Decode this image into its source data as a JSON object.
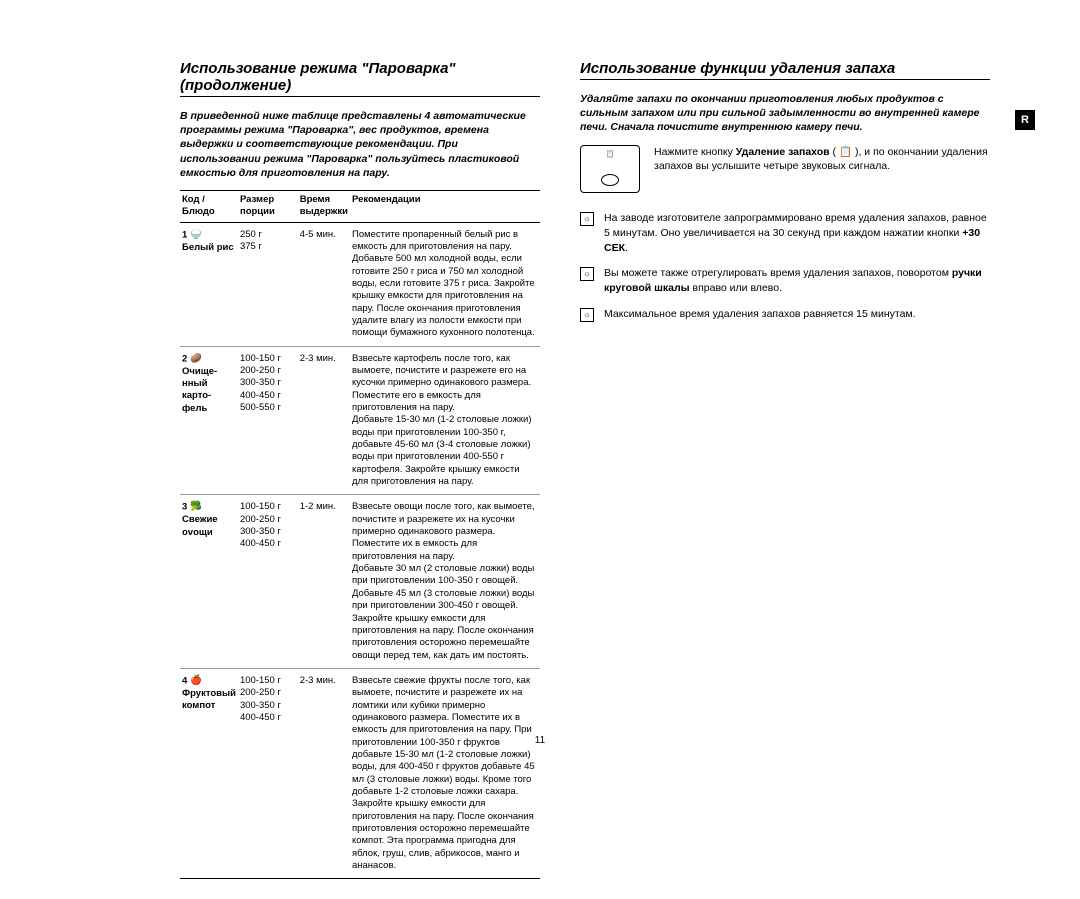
{
  "left": {
    "title": "Использование режима \"Пароварка\" (продолжение)",
    "intro": "В приведенной ниже таблице представлены 4 автоматические программы режима \"Пароварка\", вес продуктов, времена выдержки и соответствующие рекомендации. При использовании режима \"Пароварка\" пользуйтесь пластиковой емкостью для приготовления на пару.",
    "headers": {
      "code": "Код /\nБлюдо",
      "size": "Размер\nпорции",
      "time": "Время\nвыдержки",
      "rec": "Рекомендации"
    },
    "rows": [
      {
        "code": "1",
        "dish": "Белый рис",
        "size": "250 г\n375 г",
        "time": "4-5 мин.",
        "rec": "Поместите пропаренный белый рис в емкость для приготовления на пару.\nДобавьте 500 мл холодной воды, если готовите 250 г риса и 750 мл холодной воды, если готовите 375 г риса. Закройте крышку емкости для приготовления на пару. После окончания приготовления удалите влагу из полости емкости при помощи бумажного кухонного полотенца."
      },
      {
        "code": "2",
        "dish": "Очище-\nнный\nкарто-\nфель",
        "size": "100-150 г\n200-250 г\n300-350 г\n400-450 г\n500-550 г",
        "time": "2-3 мин.",
        "rec": "Взвесьте картофель после того, как вымоете, почистите и разрежете его на кусочки примерно одинакового размера. Поместите его в емкость для приготовления на пару.\nДобавьте 15-30 мл (1-2 столовые ложки) воды при приготовлении 100-350 г, добавьте 45-60 мл (3-4 столовые ложки) воды при приготовлении 400-550 г картофеля. Закройте крышку емкости для приготовления на пару."
      },
      {
        "code": "3",
        "dish": "Свежие\novощи",
        "size": "100-150 г\n200-250 г\n300-350 г\n400-450 г",
        "time": "1-2 мин.",
        "rec": "Взвесьте овощи после того, как вымоете, почистите и разрежете их на кусочки примерно одинакового размера. Поместите их в емкость для приготовления на пару.\nДобавьте 30 мл (2 столовые ложки) воды при приготовлении 100-350 г овощей.\nДобавьте 45 мл (3 столовые ложки) воды при приготовлении 300-450 г овощей. Закройте крышку емкости для приготовления на пару. После окончания приготовления осторожно перемешайте овощи перед тем, как дать им постоять."
      },
      {
        "code": "4",
        "dish": "Фруктовый\nкомпот",
        "size": "100-150 г\n200-250 г\n300-350 г\n400-450 г",
        "time": "2-3 мин.",
        "rec": "Взвесьте свежие фрукты после того, как вымоете, почистите и разрежете их на ломтики или кубики примерно одинакового размера. Поместите их в емкость для приготовления на пару. При приготовлении 100-350 г фруктов добавьте 15-30 мл (1-2 столовые ложки) воды, для 400-450 г фруктов добавьте 45 мл (3 столовые ложки) воды. Кроме того добавьте 1-2 столовые ложки сахара. Закройте крышку емкости для приготовления на пару. После окончания приготовления осторожно перемешайте компот. Эта программа пригодна для яблок, груш, слив, абрикосов, манго и ананасов."
      }
    ]
  },
  "right": {
    "title": "Использование функции удаления запаха",
    "intro": "Удаляйте запахи по окончании приготовления любых продуктов с сильным запахом или при сильной задымленности во внутренней камере печи. Сначала почистите внутреннюю камеру печи.",
    "step_text_pre": "Нажмите кнопку ",
    "step_bold": "Удаление запахов",
    "step_text_mid": " ( 📋 ), и по окончании удаления запахов вы услышите четыре звуковых сигнала.",
    "notes": [
      {
        "pre": "На заводе изготовителе запрограммировано время удаления запахов, равное 5 минутам. Оно увеличивается на 30 секунд при каждом нажатии кнопки ",
        "bold": "+30 СЕК",
        "post": "."
      },
      {
        "pre": "Вы можете также отрегулировать время удаления запахов, поворотом ",
        "bold": "ручки круговой шкалы",
        "post": " вправо или влево."
      },
      {
        "pre": "Максимальное время удаления запахов равняется 15 минутам.",
        "bold": "",
        "post": ""
      }
    ]
  },
  "tab": "R",
  "page_number": "11",
  "bullet_char": "☼"
}
